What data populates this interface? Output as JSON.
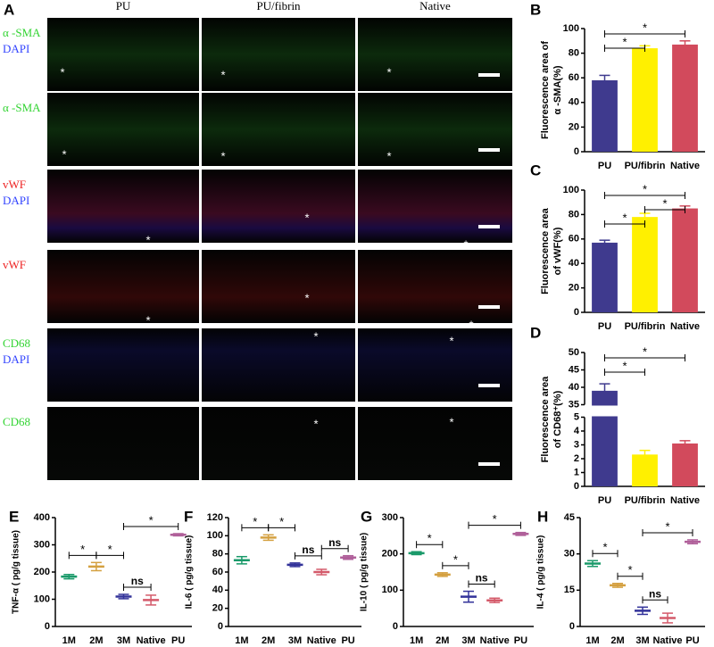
{
  "panel_a": {
    "label": "A",
    "marker": "*",
    "columns": [
      "PU",
      "PU/fibrin",
      "Native"
    ],
    "rows": [
      {
        "labels": [
          {
            "text": "α -SMA",
            "color": "#33d433"
          },
          {
            "text": "DAPI",
            "color": "#3344ff"
          }
        ]
      },
      {
        "labels": [
          {
            "text": "α -SMA",
            "color": "#33d433"
          }
        ]
      },
      {
        "labels": [
          {
            "text": "vWF",
            "color": "#ee2222"
          },
          {
            "text": "DAPI",
            "color": "#3344ff"
          }
        ]
      },
      {
        "labels": [
          {
            "text": "vWF",
            "color": "#ee2222"
          }
        ]
      },
      {
        "labels": [
          {
            "text": "CD68",
            "color": "#33d433"
          },
          {
            "text": "DAPI",
            "color": "#3344ff"
          }
        ]
      },
      {
        "labels": [
          {
            "text": "CD68",
            "color": "#33d433"
          }
        ]
      }
    ]
  },
  "chart_data": [
    {
      "type": "bar",
      "panel": "B",
      "ylabel": [
        "Fluorescence area of",
        "α -SMA(%)"
      ],
      "categories": [
        "PU",
        "PU/fibrin",
        "Native"
      ],
      "values": [
        58,
        84,
        87
      ],
      "errors": [
        4,
        2,
        3
      ],
      "colors": [
        "#3f3a8e",
        "#fff000",
        "#d24a5c"
      ],
      "ylim": [
        0,
        100
      ],
      "yticks": [
        0,
        20,
        40,
        60,
        80,
        100
      ],
      "significance": [
        {
          "from": "PU",
          "to": "PU/fibrin",
          "label": "*"
        },
        {
          "from": "PU",
          "to": "Native",
          "label": "*"
        }
      ]
    },
    {
      "type": "bar",
      "panel": "C",
      "ylabel": [
        "Fluorescence area",
        "of vWF(%)"
      ],
      "categories": [
        "PU",
        "PU/fibrin",
        "Native"
      ],
      "values": [
        57,
        78,
        85
      ],
      "errors": [
        2,
        3,
        2
      ],
      "colors": [
        "#3f3a8e",
        "#fff000",
        "#d24a5c"
      ],
      "ylim": [
        0,
        100
      ],
      "yticks": [
        0,
        20,
        40,
        60,
        80,
        100
      ],
      "significance": [
        {
          "from": "PU",
          "to": "PU/fibrin",
          "label": "*"
        },
        {
          "from": "PU/fibrin",
          "to": "Native",
          "label": "*"
        },
        {
          "from": "PU",
          "to": "Native",
          "label": "*"
        }
      ]
    },
    {
      "type": "bar",
      "panel": "D",
      "ylabel": [
        "Fluorescence area",
        "of CD68⁺(%)"
      ],
      "categories": [
        "PU",
        "PU/fibrin",
        "Native"
      ],
      "values": [
        39,
        2.3,
        3.1
      ],
      "errors": [
        2,
        0.3,
        0.2
      ],
      "colors": [
        "#3f3a8e",
        "#fff000",
        "#d24a5c"
      ],
      "ylim": [
        0,
        50
      ],
      "ybreak": [
        5,
        35
      ],
      "yticks": [
        0,
        1,
        2,
        3,
        4,
        5,
        35,
        40,
        45,
        50
      ],
      "significance": [
        {
          "from": "PU",
          "to": "PU/fibrin",
          "label": "*"
        },
        {
          "from": "PU",
          "to": "Native",
          "label": "*"
        }
      ]
    },
    {
      "type": "errorbar",
      "panel": "E",
      "ylabel": "TNF-α ( pg/g tissue)",
      "categories": [
        "1M",
        "2M",
        "3M",
        "Native",
        "PU"
      ],
      "values": [
        183,
        220,
        110,
        97,
        337
      ],
      "errors": [
        8,
        15,
        8,
        18,
        4
      ],
      "colors": [
        "#1a9a6a",
        "#d4a040",
        "#33339a",
        "#d45a6a",
        "#b0609a"
      ],
      "ylim": [
        0,
        400
      ],
      "yticks": [
        0,
        100,
        200,
        300,
        400
      ],
      "significance": [
        {
          "from": "1M",
          "to": "2M",
          "label": "*"
        },
        {
          "from": "2M",
          "to": "3M",
          "label": "*"
        },
        {
          "from": "3M",
          "to": "Native",
          "label": "ns"
        },
        {
          "from": "3M",
          "to": "PU",
          "label": "*"
        }
      ]
    },
    {
      "type": "errorbar",
      "panel": "F",
      "ylabel": "IL-6 ( pg/g tissue)",
      "categories": [
        "1M",
        "2M",
        "3M",
        "Native",
        "PU"
      ],
      "values": [
        73,
        98,
        68,
        60,
        76
      ],
      "errors": [
        4,
        3,
        2,
        3,
        2
      ],
      "colors": [
        "#1a9a6a",
        "#d4a040",
        "#33339a",
        "#d45a6a",
        "#b0609a"
      ],
      "ylim": [
        0,
        120
      ],
      "yticks": [
        0,
        20,
        40,
        60,
        80,
        100,
        120
      ],
      "significance": [
        {
          "from": "1M",
          "to": "2M",
          "label": "*"
        },
        {
          "from": "2M",
          "to": "3M",
          "label": "*"
        },
        {
          "from": "3M",
          "to": "Native",
          "label": "ns"
        },
        {
          "from": "Native",
          "to": "PU",
          "label": "ns"
        }
      ]
    },
    {
      "type": "errorbar",
      "panel": "G",
      "ylabel": "IL-10 ( pg/g tissue)",
      "categories": [
        "1M",
        "2M",
        "3M",
        "Native",
        "PU"
      ],
      "values": [
        202,
        143,
        82,
        72,
        255
      ],
      "errors": [
        4,
        5,
        15,
        6,
        4
      ],
      "colors": [
        "#1a9a6a",
        "#d4a040",
        "#33339a",
        "#d45a6a",
        "#b0609a"
      ],
      "ylim": [
        0,
        300
      ],
      "yticks": [
        0,
        100,
        200,
        300
      ],
      "significance": [
        {
          "from": "1M",
          "to": "2M",
          "label": "*"
        },
        {
          "from": "2M",
          "to": "3M",
          "label": "*"
        },
        {
          "from": "3M",
          "to": "Native",
          "label": "ns"
        },
        {
          "from": "3M",
          "to": "PU",
          "label": "*"
        }
      ]
    },
    {
      "type": "errorbar",
      "panel": "H",
      "ylabel": "IL-4 ( pg/g tissue)",
      "categories": [
        "1M",
        "2M",
        "3M",
        "Native",
        "PU"
      ],
      "values": [
        26,
        17,
        6.5,
        3.5,
        35
      ],
      "errors": [
        1.2,
        0.8,
        1.5,
        2,
        0.8
      ],
      "colors": [
        "#1a9a6a",
        "#d4a040",
        "#33339a",
        "#d45a6a",
        "#b0609a"
      ],
      "ylim": [
        0,
        45
      ],
      "yticks": [
        0,
        15,
        30,
        45
      ],
      "significance": [
        {
          "from": "1M",
          "to": "2M",
          "label": "*"
        },
        {
          "from": "2M",
          "to": "3M",
          "label": "*"
        },
        {
          "from": "3M",
          "to": "Native",
          "label": "ns"
        },
        {
          "from": "3M",
          "to": "PU",
          "label": "*"
        }
      ]
    }
  ]
}
